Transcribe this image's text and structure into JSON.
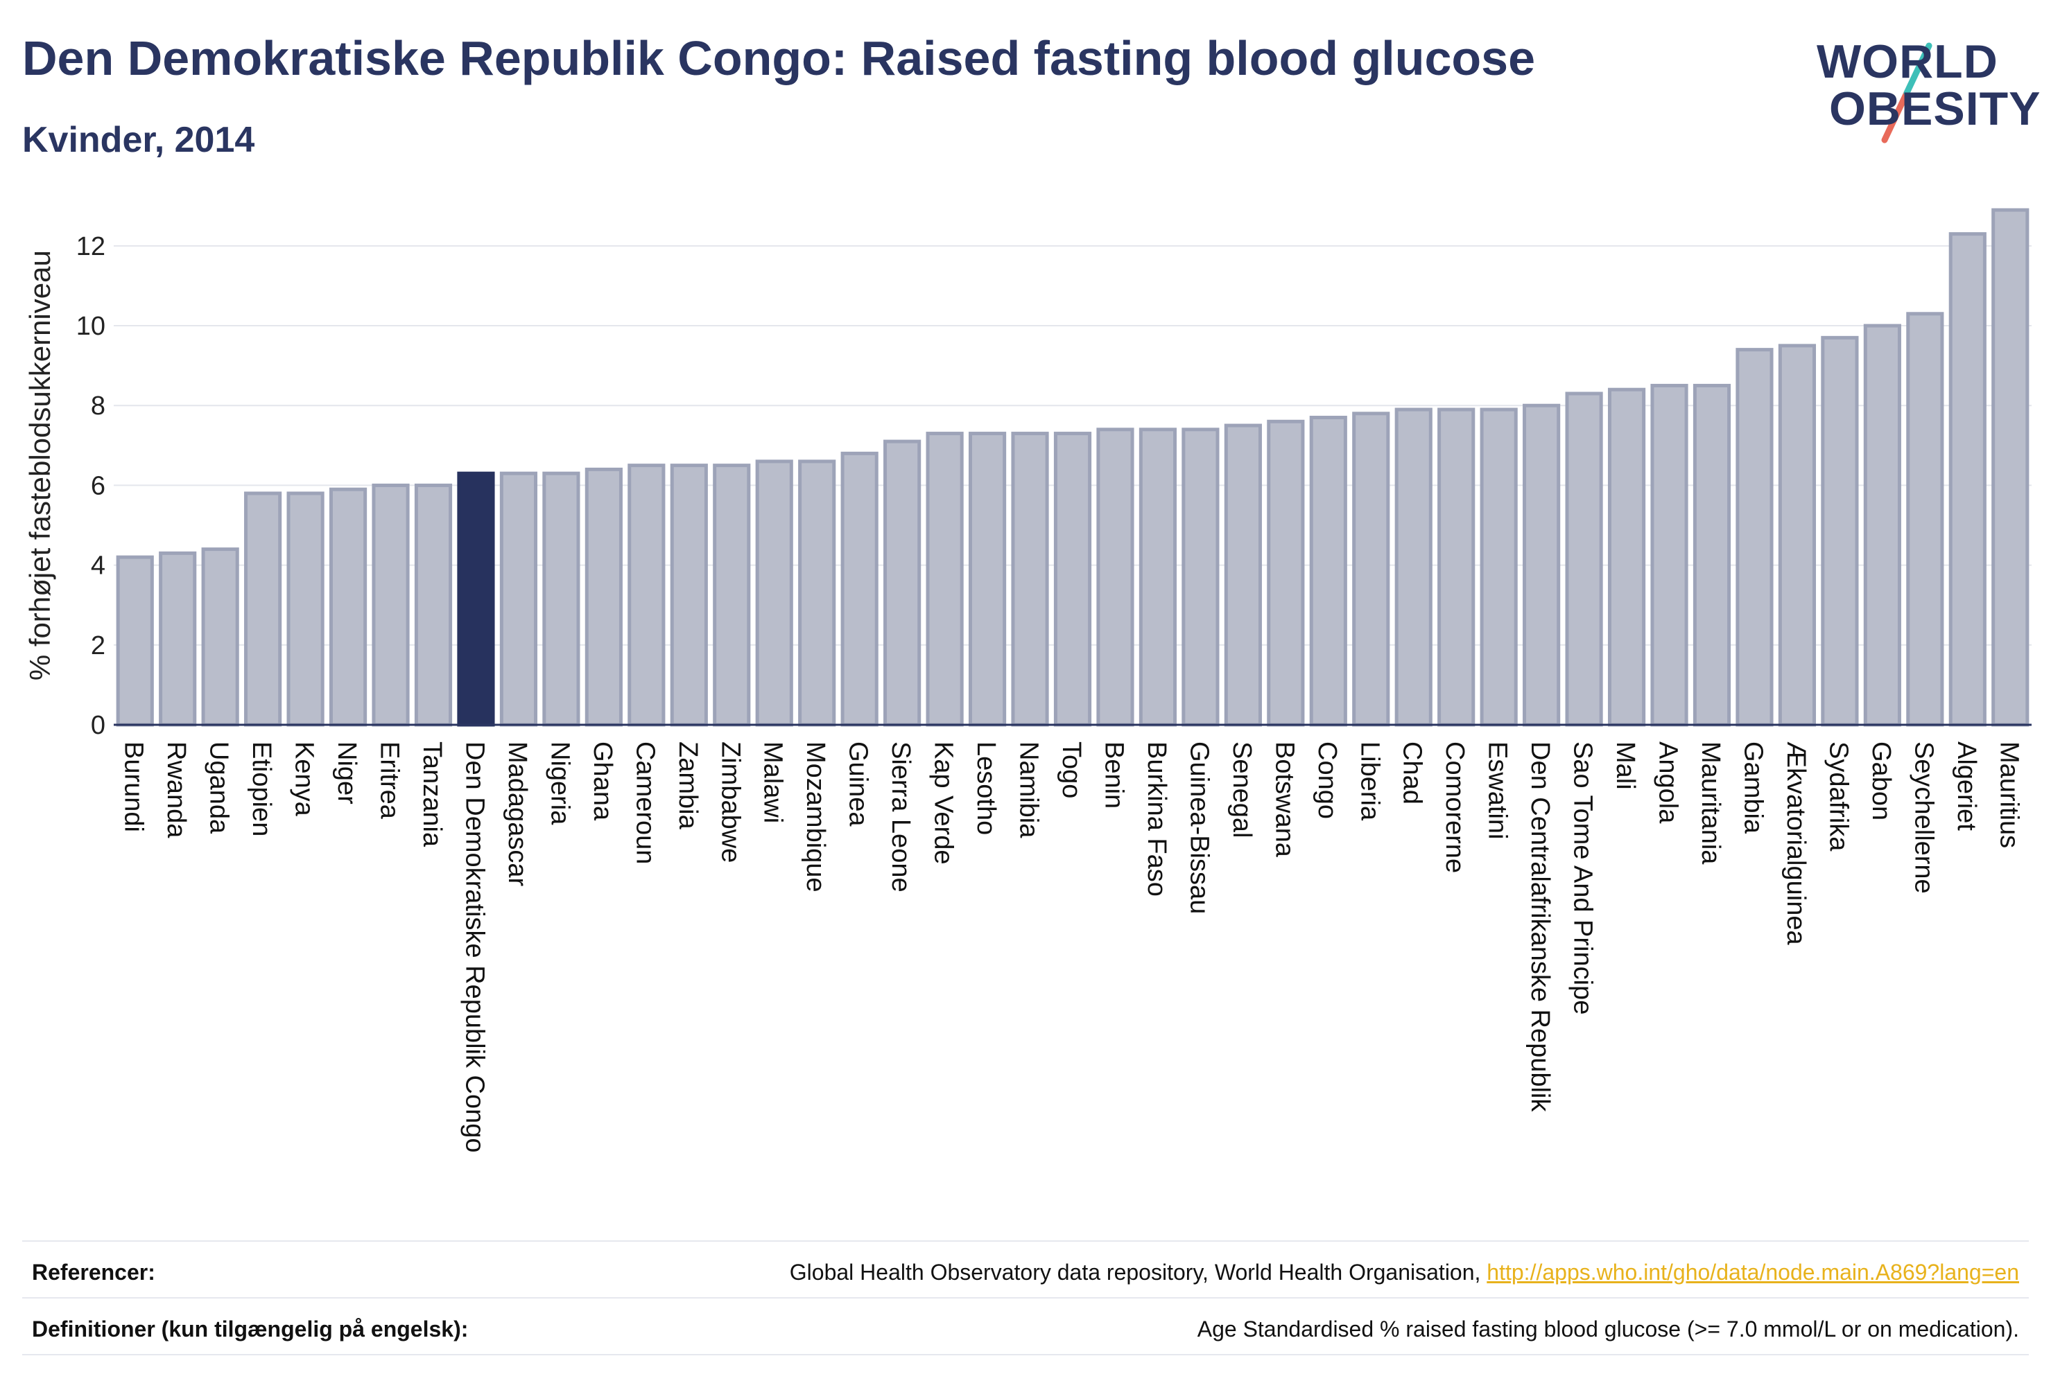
{
  "title": "Den Demokratiske Republik Congo: Raised fasting blood glucose",
  "subtitle": "Kvinder, 2014",
  "logo": {
    "line1": "WORLD",
    "line2": "OBESITY"
  },
  "colors": {
    "highlight": "#27325e",
    "bar_fill": "#b9bdcb",
    "bar_stroke": "#9da3b8",
    "text": "#2a3561",
    "logo_teal": "#3dbfb8",
    "logo_coral": "#e86a5a",
    "link": "#e8b21c"
  },
  "chart_data": {
    "type": "bar",
    "ylabel": "% forhøjet fasteblodsukkerniveau",
    "ylim": [
      0,
      13.3
    ],
    "yticks": [
      0,
      2,
      4,
      6,
      8,
      10,
      12
    ],
    "grid": true,
    "highlight_category": "Den Demokratiske Republik Congo",
    "categories": [
      "Burundi",
      "Rwanda",
      "Uganda",
      "Etiopien",
      "Kenya",
      "Niger",
      "Eritrea",
      "Tanzania",
      "Den Demokratiske Republik Congo",
      "Madagascar",
      "Nigeria",
      "Ghana",
      "Cameroun",
      "Zambia",
      "Zimbabwe",
      "Malawi",
      "Mozambique",
      "Guinea",
      "Sierra Leone",
      "Kap Verde",
      "Lesotho",
      "Namibia",
      "Togo",
      "Benin",
      "Burkina Faso",
      "Guinea-Bissau",
      "Senegal",
      "Botswana",
      "Congo",
      "Liberia",
      "Chad",
      "Comorerne",
      "Eswatini",
      "Den Centralafrikanske Republik",
      "Sao Tome And Principe",
      "Mali",
      "Angola",
      "Mauritania",
      "Gambia",
      "Ækvatorialguinea",
      "Sydafrika",
      "Gabon",
      "Seychellerne",
      "Algeriet",
      "Mauritius"
    ],
    "values": [
      4.2,
      4.3,
      4.4,
      5.8,
      5.8,
      5.9,
      6.0,
      6.0,
      6.3,
      6.3,
      6.3,
      6.4,
      6.5,
      6.5,
      6.5,
      6.6,
      6.6,
      6.8,
      7.1,
      7.3,
      7.3,
      7.3,
      7.3,
      7.4,
      7.4,
      7.4,
      7.5,
      7.6,
      7.7,
      7.8,
      7.9,
      7.9,
      7.9,
      8.0,
      8.3,
      8.4,
      8.5,
      8.5,
      9.4,
      9.5,
      9.7,
      10.0,
      10.3,
      12.3,
      12.9
    ]
  },
  "footer": {
    "references_label": "Referencer:",
    "references_text": "Global Health Observatory data repository, World Health Organisation, ",
    "references_link": "http://apps.who.int/gho/data/node.main.A869?lang=en",
    "definitions_label": "Definitioner (kun tilgængelig på engelsk):",
    "definitions_text": "Age Standardised % raised fasting blood glucose (>= 7.0 mmol/L or on medication)."
  }
}
